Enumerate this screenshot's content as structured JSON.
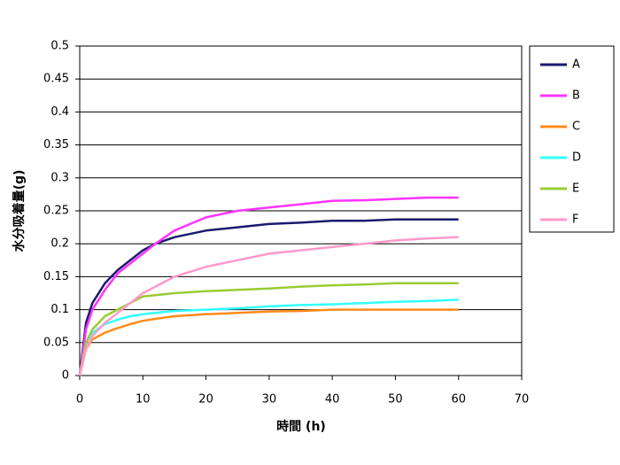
{
  "chart_data": {
    "type": "line",
    "xlabel": "時間 (h)",
    "ylabel": "水分吸着量(g)",
    "x": [
      0,
      1,
      2,
      4,
      6,
      8,
      10,
      12,
      15,
      20,
      25,
      30,
      35,
      40,
      45,
      50,
      55,
      60
    ],
    "series": [
      {
        "name": "A",
        "color": "#1a1a6e",
        "values": [
          0,
          0.08,
          0.11,
          0.14,
          0.16,
          0.175,
          0.19,
          0.2,
          0.21,
          0.22,
          0.225,
          0.23,
          0.232,
          0.235,
          0.235,
          0.237,
          0.237,
          0.237
        ]
      },
      {
        "name": "B",
        "color": "#ff33ff",
        "values": [
          0,
          0.07,
          0.1,
          0.13,
          0.155,
          0.17,
          0.185,
          0.2,
          0.22,
          0.24,
          0.25,
          0.255,
          0.26,
          0.265,
          0.266,
          0.268,
          0.27,
          0.27
        ]
      },
      {
        "name": "C",
        "color": "#ff8c1a",
        "values": [
          0,
          0.04,
          0.055,
          0.065,
          0.072,
          0.078,
          0.083,
          0.086,
          0.09,
          0.093,
          0.095,
          0.097,
          0.098,
          0.1,
          0.1,
          0.1,
          0.1,
          0.1
        ]
      },
      {
        "name": "D",
        "color": "#33ffff",
        "values": [
          0,
          0.05,
          0.065,
          0.078,
          0.085,
          0.09,
          0.093,
          0.095,
          0.098,
          0.1,
          0.102,
          0.105,
          0.107,
          0.108,
          0.11,
          0.112,
          0.113,
          0.115
        ]
      },
      {
        "name": "E",
        "color": "#99cc33",
        "values": [
          0,
          0.05,
          0.07,
          0.09,
          0.1,
          0.11,
          0.12,
          0.122,
          0.125,
          0.128,
          0.13,
          0.132,
          0.135,
          0.137,
          0.138,
          0.14,
          0.14,
          0.14
        ]
      },
      {
        "name": "F",
        "color": "#ff99cc",
        "values": [
          0,
          0.04,
          0.06,
          0.08,
          0.095,
          0.11,
          0.125,
          0.135,
          0.15,
          0.165,
          0.175,
          0.185,
          0.19,
          0.195,
          0.2,
          0.205,
          0.208,
          0.21
        ]
      }
    ],
    "xlim": [
      0,
      70
    ],
    "xticks": [
      0,
      10,
      20,
      30,
      40,
      50,
      60,
      70
    ],
    "ylim": [
      0,
      0.5
    ],
    "yticks": [
      0,
      0.05,
      0.1,
      0.15,
      0.2,
      0.25,
      0.3,
      0.35,
      0.4,
      0.45,
      0.5
    ],
    "grid": true,
    "legend": "right"
  }
}
